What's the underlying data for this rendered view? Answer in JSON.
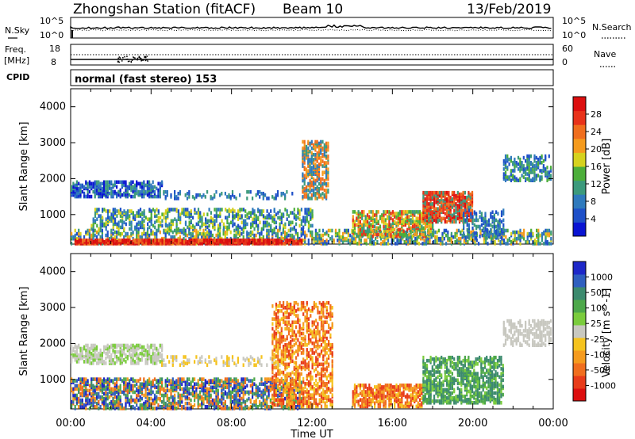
{
  "header": {
    "station": "Zhongshan Station (fitACF)",
    "beam": "Beam 10",
    "date": "13/Feb/2019"
  },
  "strips": {
    "nsky_label": "N.Sky",
    "nsky_ticks": [
      "10^5",
      "10^0"
    ],
    "nsearch_label": "N.Search",
    "nsearch_ticks": [
      "10^5",
      "10^0"
    ],
    "freq_label_1": "Freq.",
    "freq_label_2": "[MHz]",
    "freq_ticks": [
      "18",
      "8"
    ],
    "nave_label": "Nave",
    "nave_ticks": [
      "60",
      "0"
    ],
    "cpid_label": "CPID",
    "cpid_text": "normal (fast stereo) 153"
  },
  "chart_data": [
    {
      "type": "heatmap",
      "name": "Power",
      "ylabel": "Slant Range [km]",
      "xlabel": "Time UT",
      "xlim_hours": [
        0,
        24
      ],
      "ylim": [
        180,
        4500
      ],
      "yticks": [
        "1000",
        "2000",
        "3000",
        "4000"
      ],
      "xticks": [
        "00:00",
        "04:00",
        "08:00",
        "12:00",
        "16:00",
        "20:00",
        "00:00"
      ],
      "colorbar": {
        "label": "Power [dB]",
        "ticks": [
          "4",
          "8",
          "12",
          "16",
          "20",
          "24",
          "28"
        ],
        "colors": [
          "#0a14d2",
          "#1e50c8",
          "#2f7abd",
          "#3c9a7c",
          "#4cae3a",
          "#d6d21e",
          "#f59b1e",
          "#f06e1e",
          "#e8321a",
          "#dc0f0f"
        ]
      }
    },
    {
      "type": "heatmap",
      "name": "Velocity",
      "ylabel": "Slant Range [km]",
      "xlabel": "Time UT",
      "xlim_hours": [
        0,
        24
      ],
      "ylim": [
        180,
        4500
      ],
      "yticks": [
        "1000",
        "2000",
        "3000",
        "4000"
      ],
      "xticks": [
        "00:00",
        "04:00",
        "08:00",
        "12:00",
        "16:00",
        "20:00",
        "00:00"
      ],
      "colorbar": {
        "label": "Velocity [m s^-1]",
        "ticks": [
          "1000",
          "500",
          "100",
          "25",
          "-25",
          "-100",
          "-500",
          "-1000"
        ],
        "colors": [
          "#1e28c8",
          "#2f5fbf",
          "#3c8a6e",
          "#4da84a",
          "#7acc3c",
          "#c8c8c0",
          "#f5c31e",
          "#f59b1e",
          "#f06e1e",
          "#e83c1a",
          "#dc0f0f"
        ]
      }
    }
  ],
  "xaxis_title": "Time UT"
}
